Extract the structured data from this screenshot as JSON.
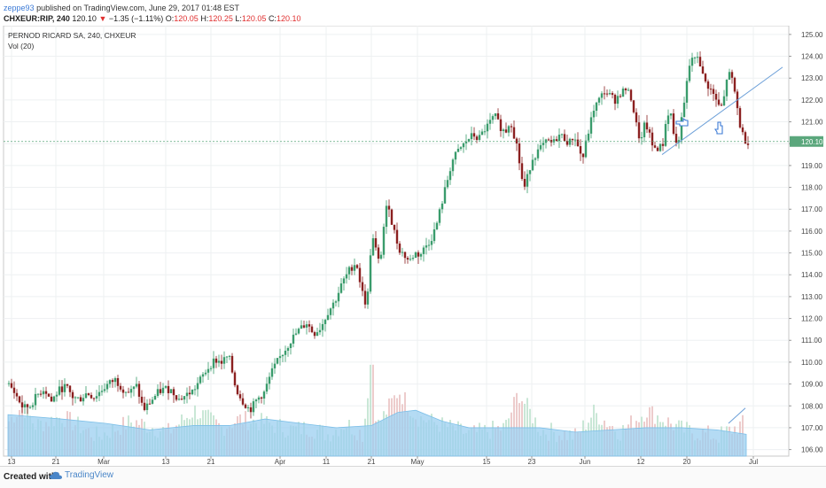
{
  "header": {
    "user": "zeppe93",
    "published": "published on TradingView.com, June 29, 2017 01:48 EST",
    "symbol": "CHXEUR:RIP, 240",
    "last": "120.10",
    "change": "−1.35 (−1.11%)",
    "o_label": "O:",
    "o": "120.05",
    "h_label": "H:",
    "h": "120.25",
    "l_label": "L:",
    "l": "120.05",
    "c_label": "C:",
    "c": "120.10"
  },
  "footer": {
    "created": "Created with",
    "brand": "TradingView"
  },
  "chart_data": {
    "type": "candlestick",
    "title": "PERNOD RICARD SA, 240, CHXEUR",
    "indicator": "Vol (20)",
    "ylim": [
      105.7,
      125.4
    ],
    "y_ticks": [
      "106.00",
      "107.00",
      "108.00",
      "109.00",
      "110.00",
      "111.00",
      "112.00",
      "113.00",
      "114.00",
      "115.00",
      "116.00",
      "117.00",
      "118.00",
      "119.00",
      "120.00",
      "121.00",
      "122.00",
      "123.00",
      "124.00",
      "125.00"
    ],
    "last_price": "120.10",
    "x_ticks": [
      "13",
      "21",
      "Mar",
      "13",
      "21",
      "Apr",
      "11",
      "21",
      "May",
      "15",
      "23",
      "Jun",
      "12",
      "20",
      "Jul"
    ],
    "close_path": [
      [
        0,
        109.0
      ],
      [
        8,
        108.5
      ],
      [
        16,
        107.9
      ],
      [
        24,
        108.0
      ],
      [
        32,
        108.5
      ],
      [
        40,
        108.8
      ],
      [
        48,
        108.2
      ],
      [
        56,
        108.7
      ],
      [
        64,
        108.9
      ],
      [
        72,
        108.4
      ],
      [
        80,
        108.3
      ],
      [
        88,
        108.6
      ],
      [
        96,
        108.4
      ],
      [
        104,
        108.7
      ],
      [
        112,
        109.0
      ],
      [
        120,
        109.2
      ],
      [
        128,
        108.8
      ],
      [
        136,
        108.6
      ],
      [
        144,
        108.9
      ],
      [
        152,
        107.8
      ],
      [
        160,
        108.2
      ],
      [
        168,
        108.6
      ],
      [
        176,
        108.8
      ],
      [
        184,
        108.7
      ],
      [
        192,
        108.3
      ],
      [
        200,
        108.5
      ],
      [
        208,
        108.7
      ],
      [
        216,
        109.2
      ],
      [
        224,
        109.7
      ],
      [
        232,
        110.1
      ],
      [
        240,
        110.0
      ],
      [
        248,
        110.3
      ],
      [
        256,
        108.8
      ],
      [
        264,
        108.2
      ],
      [
        272,
        107.8
      ],
      [
        280,
        108.3
      ],
      [
        288,
        108.6
      ],
      [
        296,
        109.5
      ],
      [
        304,
        110.1
      ],
      [
        312,
        110.6
      ],
      [
        320,
        111.1
      ],
      [
        328,
        111.5
      ],
      [
        336,
        111.8
      ],
      [
        344,
        111.3
      ],
      [
        352,
        111.6
      ],
      [
        360,
        112.3
      ],
      [
        368,
        112.8
      ],
      [
        376,
        113.6
      ],
      [
        384,
        114.2
      ],
      [
        392,
        114.6
      ],
      [
        398,
        113.3
      ],
      [
        404,
        112.5
      ],
      [
        408,
        115.0
      ],
      [
        412,
        115.8
      ],
      [
        416,
        114.5
      ],
      [
        420,
        115.0
      ],
      [
        424,
        116.6
      ],
      [
        428,
        117.4
      ],
      [
        432,
        116.4
      ],
      [
        436,
        115.8
      ],
      [
        440,
        115.2
      ],
      [
        446,
        114.9
      ],
      [
        452,
        114.6
      ],
      [
        458,
        115.0
      ],
      [
        464,
        114.9
      ],
      [
        470,
        115.3
      ],
      [
        476,
        115.6
      ],
      [
        482,
        116.2
      ],
      [
        488,
        117.2
      ],
      [
        494,
        118.2
      ],
      [
        500,
        119.2
      ],
      [
        506,
        119.6
      ],
      [
        512,
        119.9
      ],
      [
        518,
        120.2
      ],
      [
        524,
        120.4
      ],
      [
        530,
        120.2
      ],
      [
        536,
        120.6
      ],
      [
        542,
        120.9
      ],
      [
        548,
        121.3
      ],
      [
        554,
        120.8
      ],
      [
        560,
        120.5
      ],
      [
        566,
        121.1
      ],
      [
        570,
        120.4
      ],
      [
        574,
        119.8
      ],
      [
        578,
        118.5
      ],
      [
        582,
        118.0
      ],
      [
        586,
        118.6
      ],
      [
        590,
        119.3
      ],
      [
        596,
        119.6
      ],
      [
        602,
        119.9
      ],
      [
        608,
        120.1
      ],
      [
        614,
        120.0
      ],
      [
        620,
        120.4
      ],
      [
        626,
        120.3
      ],
      [
        632,
        120.0
      ],
      [
        638,
        120.4
      ],
      [
        644,
        119.6
      ],
      [
        648,
        119.4
      ],
      [
        652,
        120.2
      ],
      [
        656,
        120.9
      ],
      [
        660,
        121.6
      ],
      [
        666,
        122.0
      ],
      [
        672,
        122.4
      ],
      [
        678,
        122.2
      ],
      [
        684,
        122.0
      ],
      [
        690,
        122.3
      ],
      [
        696,
        122.5
      ],
      [
        702,
        122.1
      ],
      [
        706,
        121.3
      ],
      [
        710,
        120.4
      ],
      [
        714,
        120.2
      ],
      [
        718,
        121.0
      ],
      [
        722,
        120.5
      ],
      [
        726,
        119.9
      ],
      [
        730,
        119.8
      ],
      [
        734,
        119.8
      ],
      [
        738,
        120.0
      ],
      [
        742,
        121.2
      ],
      [
        746,
        121.6
      ],
      [
        750,
        120.5
      ],
      [
        754,
        119.8
      ],
      [
        758,
        120.8
      ],
      [
        762,
        121.8
      ],
      [
        766,
        123.1
      ],
      [
        770,
        124.0
      ],
      [
        774,
        123.8
      ],
      [
        778,
        124.1
      ],
      [
        782,
        123.2
      ],
      [
        786,
        122.8
      ],
      [
        790,
        122.6
      ],
      [
        794,
        122.3
      ],
      [
        798,
        122.0
      ],
      [
        802,
        121.6
      ],
      [
        806,
        121.8
      ],
      [
        810,
        123.0
      ],
      [
        814,
        123.2
      ],
      [
        818,
        122.6
      ],
      [
        822,
        121.6
      ],
      [
        826,
        120.6
      ],
      [
        830,
        120.2
      ],
      [
        834,
        120.1
      ]
    ],
    "volume_avg": [
      [
        0,
        107.6
      ],
      [
        60,
        107.4
      ],
      [
        110,
        107.2
      ],
      [
        160,
        106.9
      ],
      [
        210,
        107.1
      ],
      [
        250,
        107.1
      ],
      [
        290,
        107.4
      ],
      [
        330,
        107.2
      ],
      [
        370,
        107.0
      ],
      [
        410,
        107.1
      ],
      [
        440,
        107.7
      ],
      [
        460,
        107.8
      ],
      [
        490,
        107.3
      ],
      [
        520,
        107.0
      ],
      [
        560,
        107.0
      ],
      [
        600,
        107.0
      ],
      [
        640,
        106.8
      ],
      [
        680,
        106.9
      ],
      [
        720,
        107.0
      ],
      [
        760,
        107.0
      ],
      [
        800,
        106.9
      ],
      [
        833,
        106.7
      ]
    ],
    "volume_hist": [
      [
        0,
        107.3
      ],
      [
        15,
        108.0
      ],
      [
        30,
        107.1
      ],
      [
        60,
        107.5
      ],
      [
        100,
        106.6
      ],
      [
        140,
        107.3
      ],
      [
        180,
        106.8
      ],
      [
        210,
        107.8
      ],
      [
        240,
        107.0
      ],
      [
        260,
        107.4
      ],
      [
        290,
        107.2
      ],
      [
        320,
        106.9
      ],
      [
        340,
        107.0
      ],
      [
        360,
        106.7
      ],
      [
        380,
        107.2
      ],
      [
        400,
        106.7
      ],
      [
        410,
        110.7
      ],
      [
        415,
        107.0
      ],
      [
        440,
        108.7
      ],
      [
        460,
        107.5
      ],
      [
        490,
        107.1
      ],
      [
        520,
        106.7
      ],
      [
        560,
        107.0
      ],
      [
        575,
        108.6
      ],
      [
        600,
        106.9
      ],
      [
        640,
        106.6
      ],
      [
        660,
        107.7
      ],
      [
        690,
        106.8
      ],
      [
        720,
        107.8
      ],
      [
        760,
        106.9
      ],
      [
        800,
        106.6
      ],
      [
        830,
        107.2
      ]
    ],
    "trendline": {
      "from": [
        738,
        119.5
      ],
      "to": [
        874,
        123.5
      ]
    },
    "volume_trendline": {
      "from": [
        813,
        107.2
      ],
      "to": [
        832,
        107.9
      ]
    },
    "annotations": [
      "hand-pointer-1",
      "hand-pointer-2"
    ]
  },
  "colors": {
    "up": "#3a9c6c",
    "down": "#8b2020",
    "vol_avg_fill": "#9bcff0",
    "grid": "#eef0f2",
    "axis_text": "#444444",
    "last_price_bg": "#5ba77c"
  }
}
